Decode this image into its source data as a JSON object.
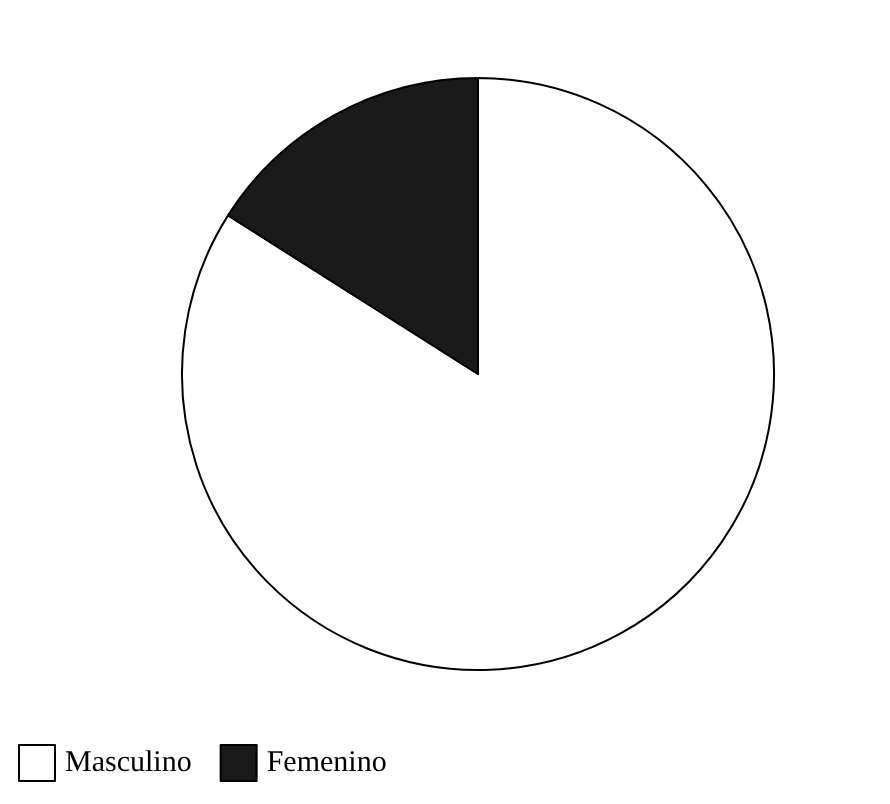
{
  "chart_data": {
    "type": "pie",
    "categories": [
      "Masculino",
      "Femenino"
    ],
    "values": [
      84,
      16
    ],
    "colors": [
      "#ffffff",
      "#1a1a1a"
    ],
    "legend": "bottom left"
  }
}
